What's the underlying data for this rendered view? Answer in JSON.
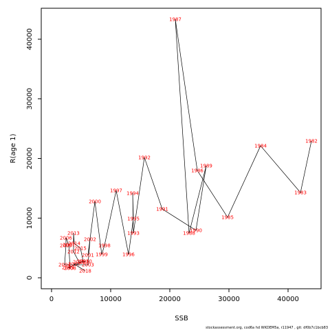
{
  "chart_data": {
    "type": "line",
    "xlabel": "SSB",
    "ylabel": "R(age 1)",
    "footer": "stockassessment.org, cod6a  hd WKDEM5a, r11947 , git: df0b7c1bcb83",
    "labels": [
      "1982",
      "1983",
      "1984",
      "1985",
      "1986",
      "1987",
      "1988",
      "1989",
      "1990",
      "1991",
      "1992",
      "1993",
      "1994",
      "1995",
      "1996",
      "1997",
      "1998",
      "1999",
      "2000",
      "2001",
      "2002",
      "2003",
      "2004",
      "2005",
      "2006",
      "2007",
      "2008",
      "2009",
      "2010",
      "2011",
      "2012",
      "2013",
      "2014",
      "2015",
      "2016",
      "2017",
      "2018"
    ],
    "x": [
      43950,
      42100,
      35350,
      29770,
      24650,
      20930,
      23260,
      26160,
      24420,
      18720,
      15700,
      13840,
      13720,
      13840,
      13020,
      10930,
      8950,
      8490,
      7330,
      6160,
      6510,
      6160,
      2210,
      2440,
      2440,
      2910,
      3140,
      2790,
      5810,
      4650,
      3720,
      3720,
      3840,
      4880,
      5350,
      3840,
      5700
    ],
    "values": [
      22940,
      14290,
      22130,
      10140,
      17980,
      43340,
      7490,
      18790,
      7950,
      11530,
      20170,
      7490,
      14180,
      9910,
      3920,
      14640,
      5420,
      3920,
      12800,
      3800,
      6460,
      2190,
      2190,
      5420,
      6690,
      5530,
      1610,
      1730,
      2770,
      2650,
      4380,
      7490,
      5760,
      4960,
      2770,
      2300,
      1150
    ],
    "color": "#000000",
    "label_color": "#ff0000",
    "xlim": [
      -1740,
      45580
    ],
    "ylim": [
      -1840,
      45190
    ],
    "xticks": [
      0,
      10000,
      20000,
      30000,
      40000
    ],
    "yticks": [
      0,
      10000,
      20000,
      30000,
      40000
    ]
  }
}
